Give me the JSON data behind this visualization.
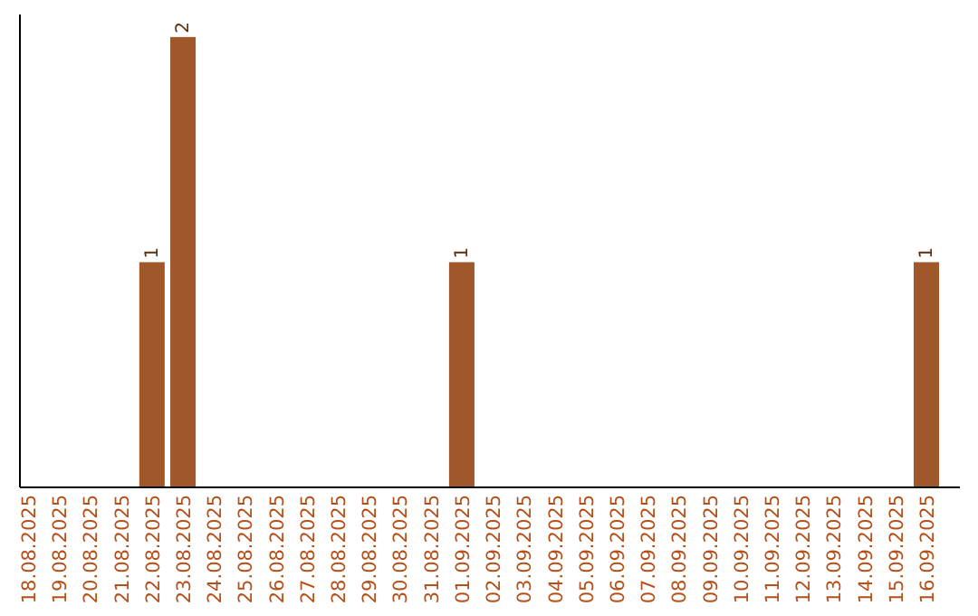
{
  "chart_data": {
    "type": "bar",
    "categories": [
      "18.08.2025",
      "19.08.2025",
      "20.08.2025",
      "21.08.2025",
      "22.08.2025",
      "23.08.2025",
      "24.08.2025",
      "25.08.2025",
      "26.08.2025",
      "27.08.2025",
      "28.08.2025",
      "29.08.2025",
      "30.08.2025",
      "31.08.2025",
      "01.09.2025",
      "02.09.2025",
      "03.09.2025",
      "04.09.2025",
      "05.09.2025",
      "06.09.2025",
      "07.09.2025",
      "08.09.2025",
      "09.09.2025",
      "10.09.2025",
      "11.09.2025",
      "12.09.2025",
      "13.09.2025",
      "14.09.2025",
      "15.09.2025",
      "16.09.2025"
    ],
    "values": [
      0,
      0,
      0,
      0,
      1,
      2,
      0,
      0,
      0,
      0,
      0,
      0,
      0,
      0,
      1,
      0,
      0,
      0,
      0,
      0,
      0,
      0,
      0,
      0,
      0,
      0,
      0,
      0,
      0,
      1
    ],
    "value_labels": [
      null,
      null,
      null,
      null,
      "1",
      "2",
      null,
      null,
      null,
      null,
      null,
      null,
      null,
      null,
      "1",
      null,
      null,
      null,
      null,
      null,
      null,
      null,
      null,
      null,
      null,
      null,
      null,
      null,
      null,
      "1"
    ],
    "color": "#a0582a",
    "ylim": [
      0,
      2.1
    ],
    "tick_labels": "x"
  }
}
